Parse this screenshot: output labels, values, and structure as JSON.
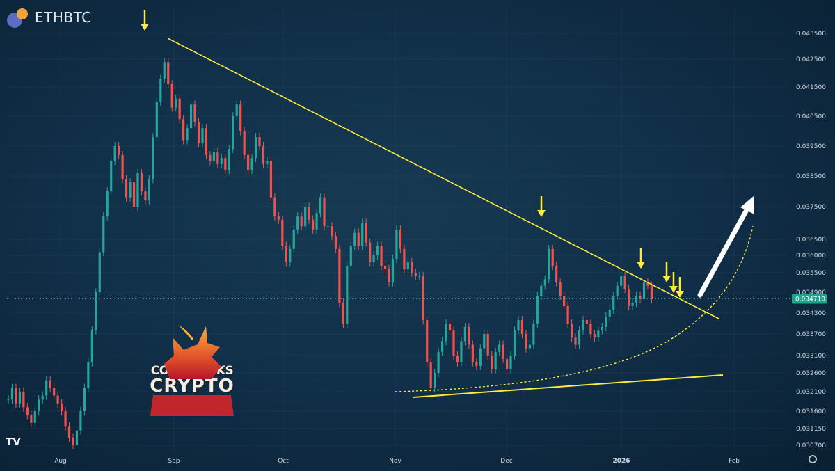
{
  "header": {
    "symbol": "ETHBTC"
  },
  "branding": {
    "line1": "COLIN TALKS",
    "line2": "CRYPTO"
  },
  "colors": {
    "up": "#26a69a",
    "down": "#ef5350",
    "annotation": "#ffeb3b",
    "arrow": "#ffffff",
    "price_tag": "#21a38b"
  },
  "chart_data": {
    "type": "candlestick",
    "y_ticks": [
      0.0435,
      0.0425,
      0.0415,
      0.0405,
      0.0395,
      0.0385,
      0.0375,
      0.0365,
      0.036,
      0.0355,
      0.0349,
      0.0343,
      0.0337,
      0.0331,
      0.0326,
      0.0321,
      0.0316,
      0.03115,
      0.0307
    ],
    "y_tick_labels": [
      "0.043500",
      "0.042500",
      "0.041500",
      "0.040500",
      "0.039500",
      "0.038500",
      "0.037500",
      "0.036500",
      "0.036000",
      "0.035500",
      "0.034900",
      "0.034300",
      "0.033700",
      "0.033100",
      "0.032600",
      "0.032100",
      "0.031600",
      "0.031150",
      "0.030700"
    ],
    "x_labels": [
      "Aug",
      "Sep",
      "Oct",
      "Nov",
      "Dec",
      "2026",
      "Feb"
    ],
    "last_price": 0.03471,
    "last_price_label": "0.034710",
    "ohlc_daily_close": [
      0.0319,
      0.0322,
      0.0318,
      0.0321,
      0.0317,
      0.0315,
      0.0313,
      0.0316,
      0.0319,
      0.032,
      0.0324,
      0.0322,
      0.032,
      0.0318,
      0.0316,
      0.0312,
      0.0309,
      0.0307,
      0.0311,
      0.0316,
      0.0322,
      0.0329,
      0.0338,
      0.0349,
      0.0361,
      0.0372,
      0.038,
      0.039,
      0.0395,
      0.0392,
      0.0384,
      0.0378,
      0.0383,
      0.0375,
      0.0386,
      0.038,
      0.0377,
      0.0384,
      0.0398,
      0.041,
      0.0418,
      0.0424,
      0.0416,
      0.0408,
      0.0411,
      0.0404,
      0.0397,
      0.0401,
      0.0409,
      0.0403,
      0.0396,
      0.0401,
      0.0392,
      0.039,
      0.0393,
      0.0389,
      0.0391,
      0.0387,
      0.0394,
      0.0405,
      0.0409,
      0.04,
      0.0392,
      0.0387,
      0.0391,
      0.0398,
      0.0395,
      0.0389,
      0.039,
      0.0378,
      0.0372,
      0.0371,
      0.0363,
      0.0358,
      0.0362,
      0.0368,
      0.0372,
      0.0369,
      0.0375,
      0.0371,
      0.0368,
      0.0373,
      0.0378,
      0.0369,
      0.0369,
      0.0366,
      0.0362,
      0.0346,
      0.034,
      0.0357,
      0.0363,
      0.0367,
      0.0363,
      0.037,
      0.0364,
      0.0358,
      0.036,
      0.0363,
      0.0357,
      0.0356,
      0.0352,
      0.0359,
      0.0368,
      0.0362,
      0.0356,
      0.0358,
      0.0355,
      0.0354,
      0.0354,
      0.0341,
      0.0329,
      0.0322,
      0.0326,
      0.0332,
      0.0335,
      0.034,
      0.0338,
      0.0331,
      0.0329,
      0.0335,
      0.0339,
      0.0334,
      0.0329,
      0.0328,
      0.0333,
      0.0337,
      0.0331,
      0.0327,
      0.0332,
      0.0334,
      0.033,
      0.0327,
      0.0331,
      0.0338,
      0.0341,
      0.0337,
      0.0333,
      0.0334,
      0.034,
      0.0348,
      0.0351,
      0.0353,
      0.0362,
      0.0357,
      0.0352,
      0.0348,
      0.0345,
      0.034,
      0.0336,
      0.0334,
      0.0338,
      0.0341,
      0.034,
      0.0337,
      0.0336,
      0.0338,
      0.0339,
      0.0342,
      0.0344,
      0.0348,
      0.0351,
      0.0354,
      0.035,
      0.0345,
      0.0346,
      0.0348,
      0.0347,
      0.0352,
      0.0351,
      0.0347
    ]
  },
  "annotations": {
    "resistance": {
      "from": {
        "date_index": 42,
        "value": 0.0433
      },
      "to": {
        "date_index": 180,
        "value": 0.0343
      }
    },
    "support": {
      "from": {
        "date_index": 102,
        "value": 0.03195
      },
      "to": {
        "date_index": 190,
        "value": 0.0325
      }
    },
    "markers_on_resistance": [
      42,
      135,
      158,
      165,
      168,
      170
    ]
  }
}
